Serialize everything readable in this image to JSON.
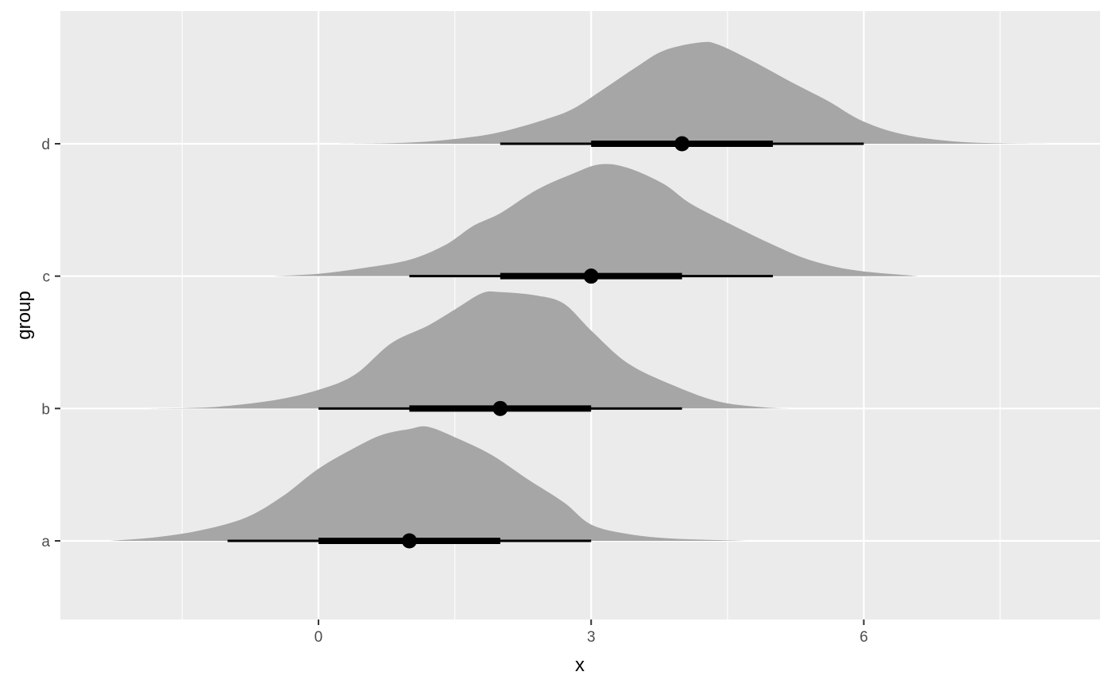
{
  "chart_data": {
    "type": "halfeye",
    "title": "",
    "xlabel": "x",
    "ylabel": "group",
    "xlim": [
      -2.84,
      8.6
    ],
    "x_ticks": [
      0,
      3,
      6
    ],
    "x_minor_ticks": [
      -1.5,
      1.5,
      4.5,
      7.5
    ],
    "grid": true,
    "colors": {
      "panel_bg": "#ebebeb",
      "grid": "#ffffff",
      "density_fill": "#a6a6a6",
      "interval": "#000000",
      "tick_text": "#4d4d4d",
      "title_text": "#000000"
    },
    "categories": [
      "a",
      "b",
      "c",
      "d"
    ],
    "groups": [
      {
        "name": "a",
        "median": 1.0,
        "interval_66": [
          0.0,
          2.0
        ],
        "interval_95": [
          -1.0,
          3.0
        ],
        "density": [
          [
            -2.3,
            0
          ],
          [
            -1.8,
            0.03
          ],
          [
            -1.3,
            0.09
          ],
          [
            -0.8,
            0.2
          ],
          [
            -0.4,
            0.38
          ],
          [
            0,
            0.62
          ],
          [
            0.4,
            0.8
          ],
          [
            0.7,
            0.91
          ],
          [
            1.0,
            0.96
          ],
          [
            1.2,
            0.98
          ],
          [
            1.5,
            0.89
          ],
          [
            1.9,
            0.74
          ],
          [
            2.3,
            0.53
          ],
          [
            2.7,
            0.33
          ],
          [
            3.0,
            0.14
          ],
          [
            3.4,
            0.06
          ],
          [
            3.9,
            0.02
          ],
          [
            4.7,
            0
          ]
        ]
      },
      {
        "name": "b",
        "median": 2.0,
        "interval_66": [
          1.0,
          3.0
        ],
        "interval_95": [
          0.0,
          4.0
        ],
        "density": [
          [
            -1.85,
            0
          ],
          [
            -1.2,
            0.01
          ],
          [
            -0.5,
            0.07
          ],
          [
            0,
            0.16
          ],
          [
            0.4,
            0.29
          ],
          [
            0.8,
            0.56
          ],
          [
            1.2,
            0.71
          ],
          [
            1.5,
            0.85
          ],
          [
            1.8,
            0.99
          ],
          [
            2.0,
            1.0
          ],
          [
            2.4,
            0.97
          ],
          [
            2.7,
            0.9
          ],
          [
            3.0,
            0.67
          ],
          [
            3.4,
            0.39
          ],
          [
            3.9,
            0.2
          ],
          [
            4.4,
            0.06
          ],
          [
            4.9,
            0.01
          ],
          [
            5.2,
            0
          ]
        ]
      },
      {
        "name": "c",
        "median": 3.0,
        "interval_66": [
          2.0,
          4.0
        ],
        "interval_95": [
          1.0,
          5.0
        ],
        "density": [
          [
            -0.5,
            0
          ],
          [
            0,
            0.02
          ],
          [
            0.5,
            0.07
          ],
          [
            1.0,
            0.14
          ],
          [
            1.4,
            0.27
          ],
          [
            1.7,
            0.43
          ],
          [
            2.0,
            0.54
          ],
          [
            2.4,
            0.74
          ],
          [
            2.8,
            0.88
          ],
          [
            3.1,
            0.96
          ],
          [
            3.4,
            0.93
          ],
          [
            3.8,
            0.79
          ],
          [
            4.1,
            0.62
          ],
          [
            4.6,
            0.42
          ],
          [
            5.0,
            0.27
          ],
          [
            5.4,
            0.14
          ],
          [
            5.9,
            0.05
          ],
          [
            6.6,
            0
          ]
        ]
      },
      {
        "name": "d",
        "median": 4.0,
        "interval_66": [
          3.0,
          5.0
        ],
        "interval_95": [
          2.0,
          6.0
        ],
        "density": [
          [
            0.2,
            0
          ],
          [
            1.0,
            0.01
          ],
          [
            1.6,
            0.05
          ],
          [
            2.0,
            0.1
          ],
          [
            2.5,
            0.21
          ],
          [
            2.8,
            0.3
          ],
          [
            3.1,
            0.45
          ],
          [
            3.5,
            0.66
          ],
          [
            3.8,
            0.8
          ],
          [
            4.2,
            0.87
          ],
          [
            4.4,
            0.85
          ],
          [
            4.8,
            0.7
          ],
          [
            5.2,
            0.53
          ],
          [
            5.6,
            0.37
          ],
          [
            6.0,
            0.19
          ],
          [
            6.5,
            0.07
          ],
          [
            7.2,
            0.01
          ],
          [
            8.2,
            0
          ]
        ]
      }
    ]
  }
}
